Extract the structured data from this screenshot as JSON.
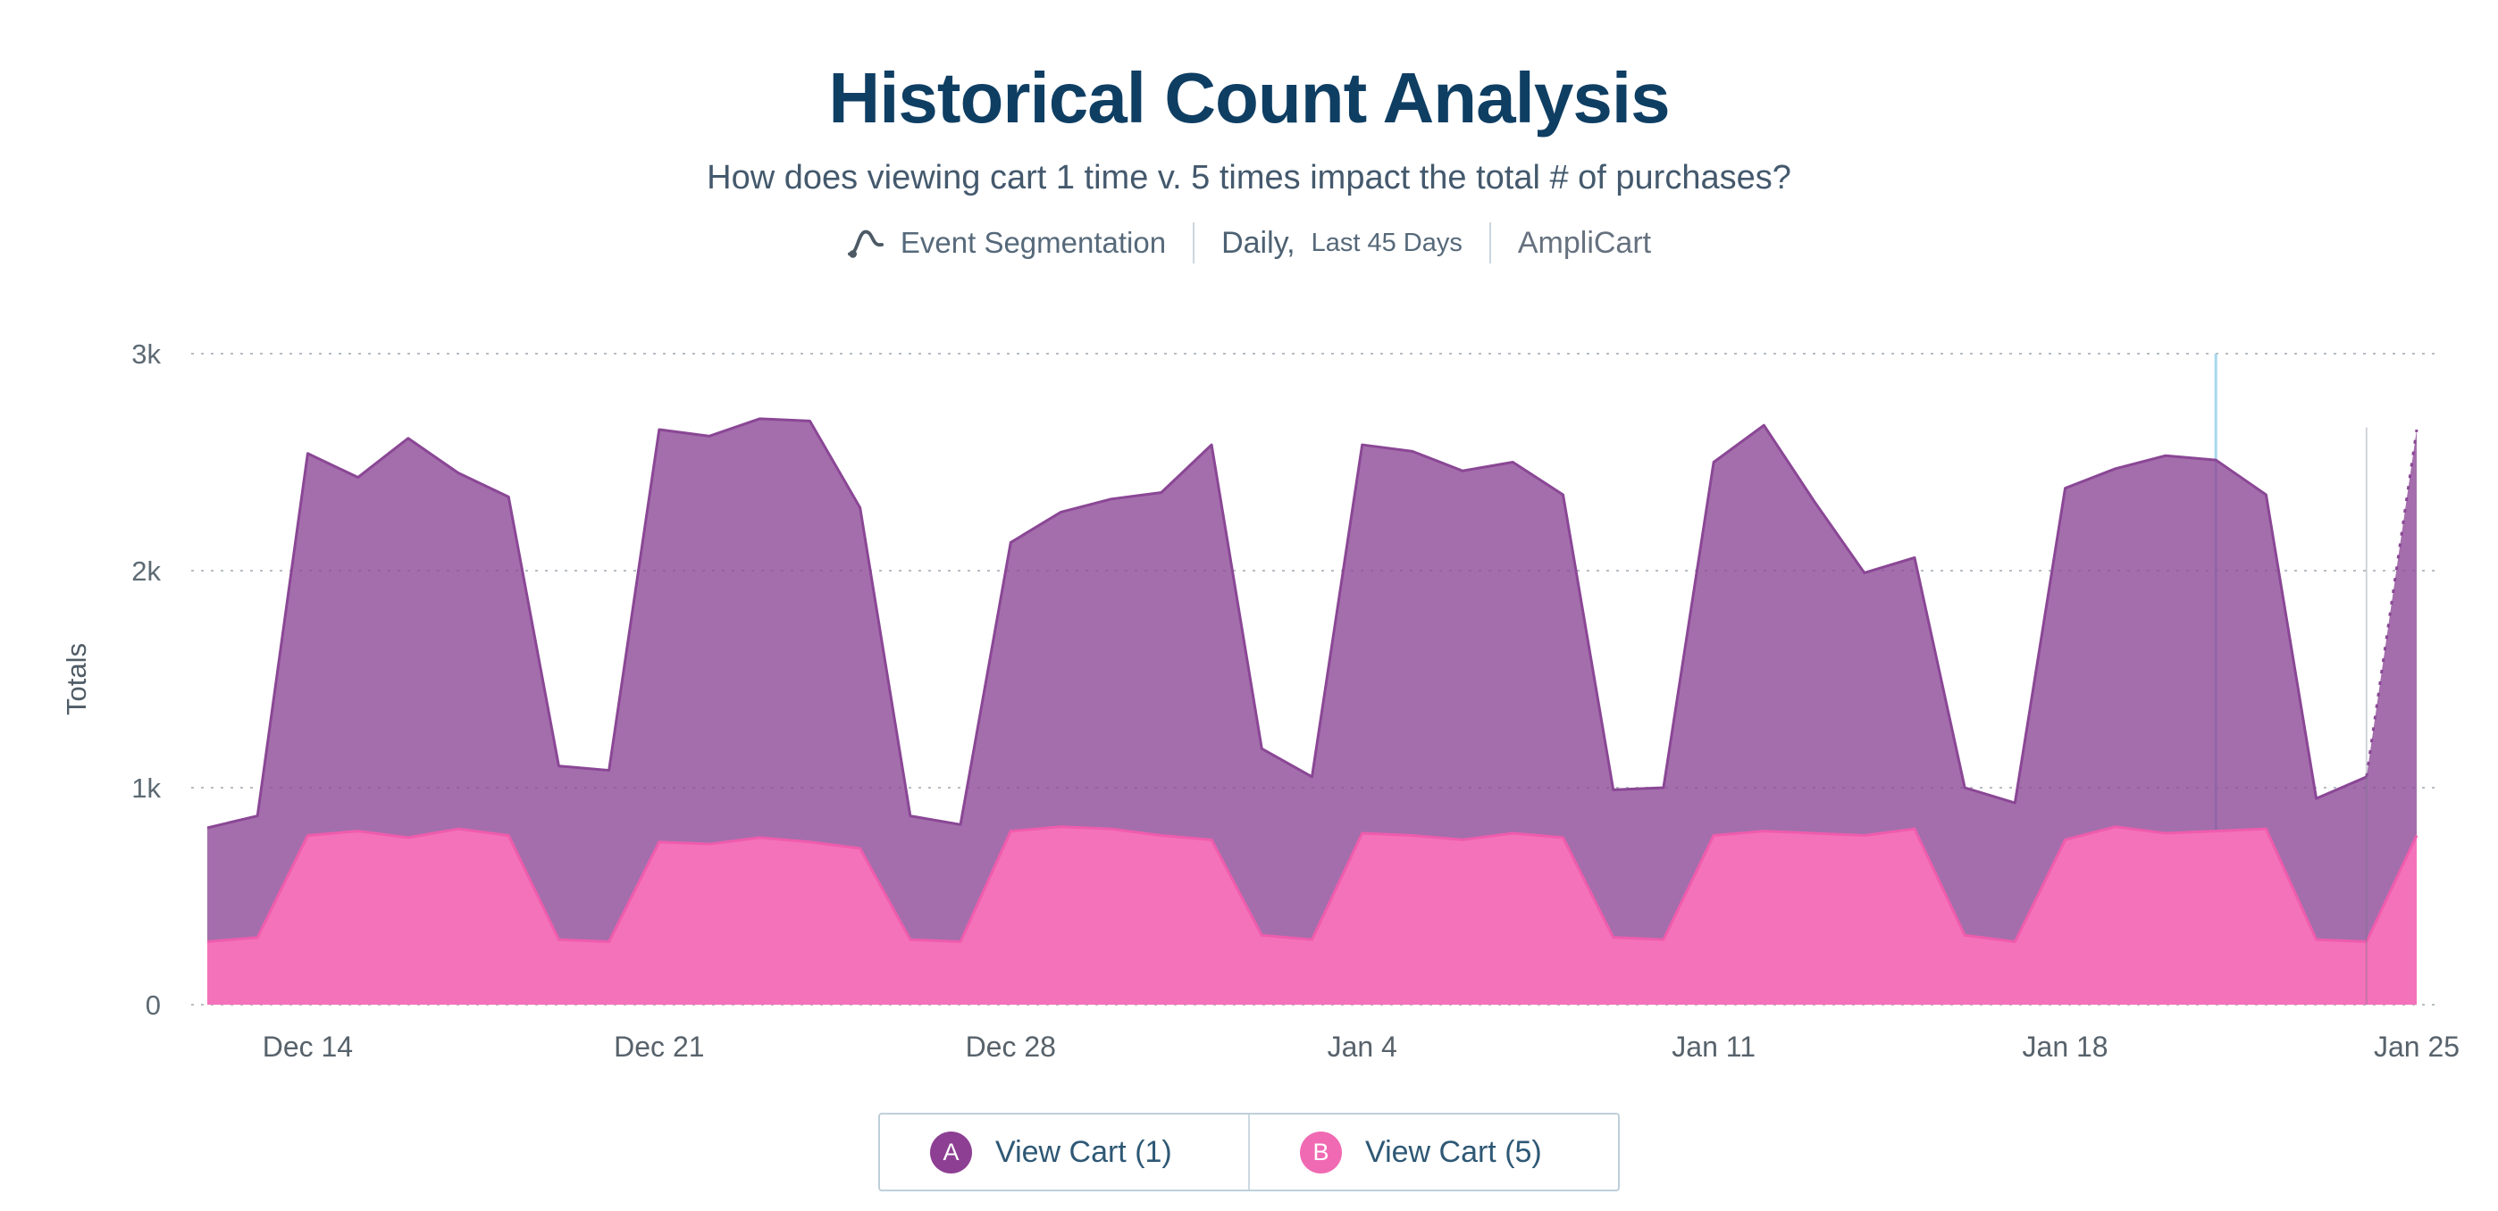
{
  "header": {
    "title": "Historical Count Analysis",
    "subtitle": "How does viewing cart 1 time v. 5 times impact the total # of purchases?",
    "meta": {
      "icon": "event-segmentation-icon",
      "chart_type": "Event Segmentation",
      "range_primary": "Daily,",
      "range_secondary": "Last 45 Days",
      "project": "AmpliCart"
    }
  },
  "chart_data": {
    "type": "area",
    "title": "Historical Count Analysis",
    "xlabel": "",
    "ylabel": "Totals",
    "ylim": [
      0,
      3000
    ],
    "grid": "dotted-horizontal",
    "legend_position": "bottom",
    "yticks": [
      {
        "v": 0,
        "label": "0"
      },
      {
        "v": 1000,
        "label": "1k"
      },
      {
        "v": 2000,
        "label": "2k"
      },
      {
        "v": 3000,
        "label": "3k"
      }
    ],
    "x_dates": [
      "Dec 12",
      "Dec 13",
      "Dec 14",
      "Dec 15",
      "Dec 16",
      "Dec 17",
      "Dec 18",
      "Dec 19",
      "Dec 20",
      "Dec 21",
      "Dec 22",
      "Dec 23",
      "Dec 24",
      "Dec 25",
      "Dec 26",
      "Dec 27",
      "Dec 28",
      "Dec 29",
      "Dec 30",
      "Dec 31",
      "Jan 1",
      "Jan 2",
      "Jan 3",
      "Jan 4",
      "Jan 5",
      "Jan 6",
      "Jan 7",
      "Jan 8",
      "Jan 9",
      "Jan 10",
      "Jan 11",
      "Jan 12",
      "Jan 13",
      "Jan 14",
      "Jan 15",
      "Jan 16",
      "Jan 17",
      "Jan 18",
      "Jan 19",
      "Jan 20",
      "Jan 21",
      "Jan 22",
      "Jan 23",
      "Jan 24",
      "Jan 25"
    ],
    "xticks": [
      {
        "i": 2,
        "label": "Dec 14"
      },
      {
        "i": 9,
        "label": "Dec 21"
      },
      {
        "i": 16,
        "label": "Dec 28"
      },
      {
        "i": 23,
        "label": "Jan 4"
      },
      {
        "i": 30,
        "label": "Jan 11"
      },
      {
        "i": 37,
        "label": "Jan 18"
      },
      {
        "i": 44,
        "label": "Jan 25"
      }
    ],
    "series": [
      {
        "name": "View Cart (1)",
        "color": "#8d4a97",
        "line": "#8a4795",
        "fill_opacity": 0.8,
        "values": [
          815,
          870,
          2540,
          2430,
          2610,
          2450,
          2340,
          1100,
          1080,
          2650,
          2620,
          2700,
          2690,
          2290,
          870,
          830,
          2130,
          2270,
          2330,
          2360,
          2580,
          1180,
          1050,
          2580,
          2550,
          2460,
          2500,
          2350,
          990,
          1000,
          2500,
          2670,
          2320,
          1990,
          2060,
          1000,
          930,
          2380,
          2470,
          2530,
          2510,
          2350,
          950,
          1050,
          2650
        ]
      },
      {
        "name": "View Cart (5)",
        "color": "#f472b9",
        "line": "#ef5cad",
        "fill_opacity": 1,
        "values": [
          290,
          310,
          780,
          800,
          770,
          810,
          780,
          300,
          290,
          750,
          740,
          770,
          750,
          720,
          300,
          290,
          800,
          820,
          810,
          780,
          760,
          320,
          300,
          790,
          780,
          760,
          790,
          770,
          310,
          300,
          780,
          800,
          790,
          780,
          810,
          320,
          290,
          760,
          820,
          790,
          800,
          810,
          300,
          290,
          780
        ]
      }
    ],
    "markers": [
      {
        "index": 40,
        "color": "#a6d8ec",
        "width": 3,
        "behind": true
      },
      {
        "index": 43,
        "color": "rgba(105,118,133,0.32)",
        "width": 2,
        "behind": false,
        "from_value": 2660
      }
    ]
  },
  "legend": {
    "items": [
      {
        "badge": "A",
        "label": "View Cart (1)",
        "color": "#8d3f93"
      },
      {
        "badge": "B",
        "label": "View Cart (5)",
        "color": "#f06ab3"
      }
    ]
  }
}
